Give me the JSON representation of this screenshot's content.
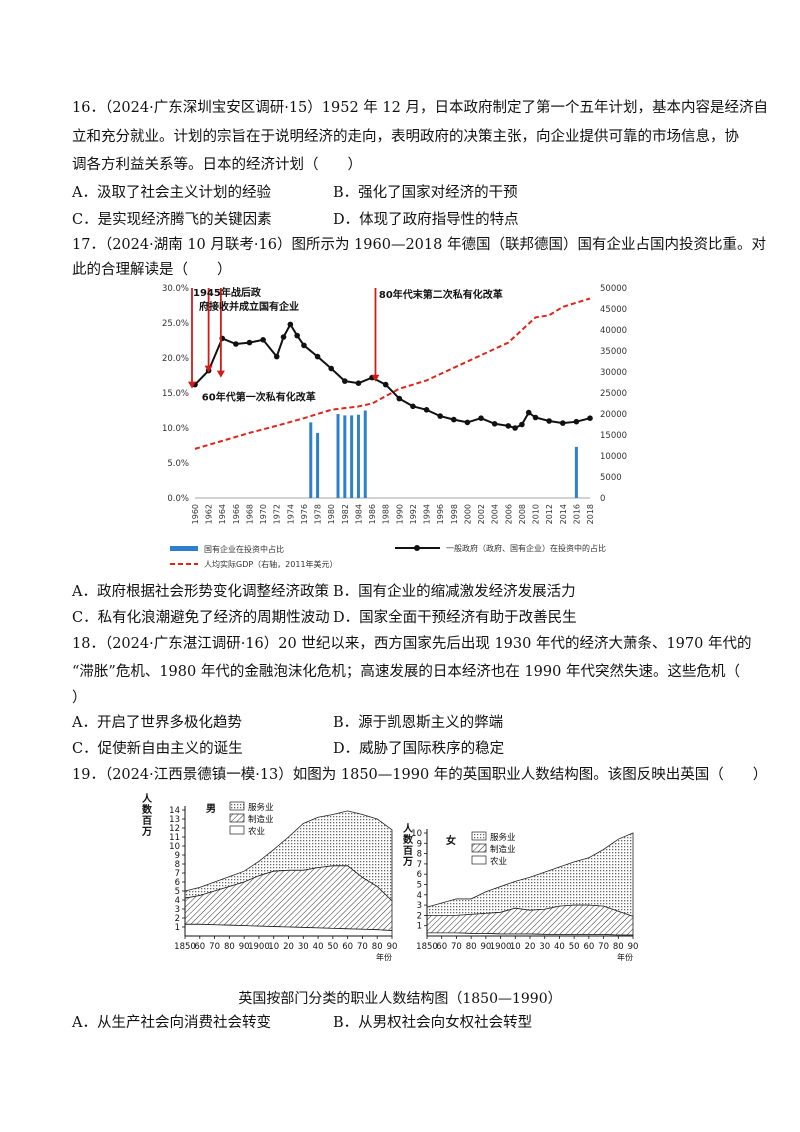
{
  "q16": {
    "line1": "16．（2024·广东深圳宝安区调研·15）1952 年 12 月，日本政府制定了第一个五年计划，基本内容是经济自",
    "line2": "立和充分就业。计划的宗旨在于说明经济的走向，表明政府的决策主张，向企业提供可靠的市场信息，协",
    "line3": "调各方利益关系等。日本的经济计划（　　）",
    "options": {
      "A": "A．汲取了社会主义计划的经验",
      "B": "B．强化了国家对经济的干预",
      "C": "C．是实现经济腾飞的关键因素",
      "D": "D．体现了政府指导性的特点"
    }
  },
  "q17": {
    "line1": "17．（2024·湖南 10 月联考·16）图所示为 1960—2018 年德国（联邦德国）国有企业占国内投资比重。对",
    "line2": "此的合理解读是（　　）",
    "options": {
      "A": "A．政府根据社会形势变化调整经济政策",
      "B": "B．国有企业的缩减激发经济发展活力",
      "C": "C．私有化浪潮避免了经济的周期性波动",
      "D": "D．国家全面干预经济有助于改善民生"
    }
  },
  "q18": {
    "line1": "18．（2024·广东湛江调研·16）20 世纪以来，西方国家先后出现 1930 年代的经济大萧条、1970 年代的",
    "line2": "“滞胀”危机、1980 年代的金融泡沫化危机；高速发展的日本经济也在 1990 年代突然失速。这些危机（",
    "line3": "）",
    "options": {
      "A": "A．开启了世界多极化趋势",
      "B": "B．源于凯恩斯主义的弊端",
      "C": "C．促使新自由主义的诞生",
      "D": "D．威胁了国际秩序的稳定"
    }
  },
  "q19": {
    "line1": "19．（2024·江西景德镇一模·13）如图为 1850—1990 年的英国职业人数结构图。该图反映出英国（　　）",
    "caption": "英国按部门分类的职业人数结构图（1850—1990）",
    "options": {
      "A": "A．从生产社会向消费社会转变",
      "B": "B．从男权社会向女权社会转型"
    }
  },
  "chart_data": [
    {
      "type": "bar+line",
      "title": "1960—2018年德国（联邦德国）国有企业占国内投资比重",
      "annotations": [
        "1945年战后政府接收并成立国有企业",
        "60年代第一次私有化改革",
        "80年代末第二次私有化改革"
      ],
      "yticks_left": [
        "0.0%",
        "5.0%",
        "10.0%",
        "15.0%",
        "20.0%",
        "25.0%",
        "30.0%"
      ],
      "yticks_right": [
        "0",
        "5000",
        "10000",
        "15000",
        "20000",
        "25000",
        "30000",
        "35000",
        "40000",
        "45000",
        "50000"
      ],
      "ylim_left": [
        0,
        30
      ],
      "ylim_right": [
        0,
        50000
      ],
      "x_labels": [
        "1960",
        "1962",
        "1964",
        "1966",
        "1968",
        "1970",
        "1972",
        "1974",
        "1976",
        "1978",
        "1980",
        "1982",
        "1984",
        "1986",
        "1988",
        "1990",
        "1992",
        "1994",
        "1996",
        "1998",
        "2000",
        "2002",
        "2004",
        "2006",
        "2008",
        "2010",
        "2012",
        "2014",
        "2016",
        "2018"
      ],
      "legend": [
        "国有企业在投资中占比",
        "一般政府（政府、国有企业）在投资中的占比",
        "人均实际GDP（右轴，2011年美元）"
      ],
      "series": [
        {
          "name": "国有企业在投资中占比",
          "kind": "bar",
          "x": [
            1977,
            1978,
            1981,
            1982,
            1983,
            1984,
            1985,
            2016
          ],
          "values": [
            10.8,
            9.3,
            12.0,
            11.8,
            11.8,
            11.9,
            12.5,
            7.3
          ]
        },
        {
          "name": "一般政府（政府、国有企业）在投资中的占比",
          "kind": "line",
          "x": [
            1960,
            1962,
            1964,
            1966,
            1968,
            1970,
            1972,
            1973,
            1974,
            1975,
            1976,
            1978,
            1980,
            1982,
            1984,
            1986,
            1988,
            1990,
            1992,
            1994,
            1996,
            1998,
            2000,
            2002,
            2004,
            2006,
            2007,
            2008,
            2009,
            2010,
            2012,
            2014,
            2016,
            2018
          ],
          "values": [
            16.2,
            18.2,
            22.8,
            22.0,
            22.2,
            22.6,
            20.2,
            23.0,
            24.8,
            23.2,
            21.8,
            20.2,
            18.5,
            16.7,
            16.4,
            17.2,
            16.2,
            14.2,
            13.1,
            12.6,
            11.7,
            11.2,
            10.8,
            11.4,
            10.6,
            10.3,
            10.0,
            10.5,
            12.2,
            11.5,
            11.0,
            10.7,
            10.9,
            11.4
          ]
        },
        {
          "name": "人均实际GDP（右轴，2011年美元）",
          "kind": "dashed-line",
          "x": [
            1960,
            1964,
            1968,
            1972,
            1976,
            1980,
            1984,
            1986,
            1990,
            1994,
            1998,
            2002,
            2006,
            2008,
            2010,
            2012,
            2014,
            2016,
            2018
          ],
          "values": [
            11700,
            13600,
            15500,
            17200,
            19000,
            21000,
            21800,
            22500,
            26000,
            28000,
            31000,
            34000,
            37000,
            40000,
            43000,
            43500,
            45500,
            46500,
            47500
          ]
        }
      ]
    },
    {
      "type": "area",
      "title": "男",
      "ylabel": "人数百万",
      "xlabel": "年份",
      "ylim": [
        0,
        14
      ],
      "yticks": [
        "1",
        "2",
        "3",
        "4",
        "5",
        "6",
        "7",
        "8",
        "9",
        "10",
        "11",
        "12",
        "13",
        "14"
      ],
      "x_labels": [
        "1850",
        "60",
        "70",
        "80",
        "90",
        "1900",
        "10",
        "20",
        "30",
        "40",
        "50",
        "60",
        "70",
        "80",
        "90"
      ],
      "legend": [
        "服务业",
        "制造业",
        "农业"
      ],
      "x": [
        1850,
        1860,
        1870,
        1880,
        1890,
        1900,
        1910,
        1920,
        1930,
        1940,
        1950,
        1960,
        1970,
        1980,
        1990
      ],
      "series": [
        {
          "name": "农业（累计）",
          "values": [
            1.3,
            1.3,
            1.25,
            1.2,
            1.15,
            1.1,
            1.05,
            1.0,
            0.95,
            0.9,
            0.85,
            0.8,
            0.75,
            0.7,
            0.6
          ]
        },
        {
          "name": "制造业（累计）",
          "values": [
            4.2,
            4.5,
            5.0,
            5.5,
            6.0,
            6.7,
            7.2,
            7.3,
            7.3,
            7.6,
            7.8,
            7.8,
            6.5,
            5.5,
            3.9
          ]
        },
        {
          "name": "服务业（累计）",
          "values": [
            5.0,
            5.4,
            6.0,
            6.6,
            7.2,
            8.3,
            9.6,
            11.0,
            12.5,
            13.2,
            13.5,
            13.9,
            13.5,
            13.0,
            11.8
          ]
        }
      ]
    },
    {
      "type": "area",
      "title": "女",
      "ylabel": "人数百万",
      "xlabel": "年份",
      "ylim": [
        0,
        10
      ],
      "yticks": [
        "1",
        "2",
        "3",
        "4",
        "5",
        "6",
        "7",
        "8",
        "9",
        "10"
      ],
      "x_labels": [
        "1850",
        "60",
        "70",
        "80",
        "90",
        "1900",
        "10",
        "20",
        "30",
        "40",
        "50",
        "60",
        "70",
        "80",
        "90"
      ],
      "legend": [
        "服务业",
        "制造业",
        "农业"
      ],
      "x": [
        1850,
        1860,
        1870,
        1880,
        1890,
        1900,
        1910,
        1920,
        1930,
        1940,
        1950,
        1960,
        1970,
        1980,
        1990
      ],
      "series": [
        {
          "name": "农业（累计）",
          "values": [
            0.3,
            0.3,
            0.3,
            0.25,
            0.25,
            0.2,
            0.2,
            0.2,
            0.15,
            0.15,
            0.15,
            0.15,
            0.15,
            0.1,
            0.1
          ]
        },
        {
          "name": "制造业（累计）",
          "values": [
            2.0,
            2.0,
            2.0,
            2.1,
            2.2,
            2.3,
            2.7,
            2.5,
            2.6,
            2.9,
            3.0,
            3.0,
            2.9,
            2.4,
            1.9
          ]
        },
        {
          "name": "服务业（累计）",
          "values": [
            2.8,
            3.2,
            3.6,
            3.6,
            4.3,
            4.8,
            5.3,
            5.7,
            6.2,
            6.7,
            7.2,
            7.6,
            8.4,
            9.4,
            10.0
          ]
        }
      ]
    }
  ]
}
